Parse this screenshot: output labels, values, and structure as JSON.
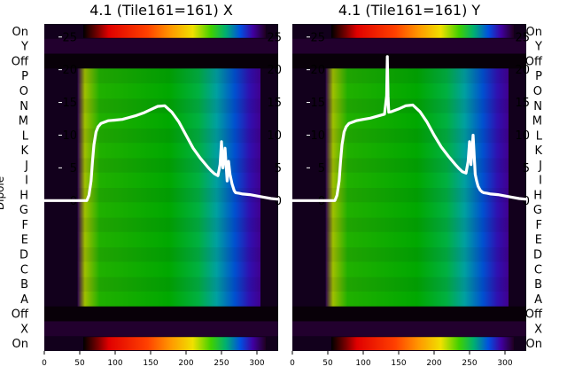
{
  "chart_data": [
    {
      "type": "heatmap",
      "title": "4.1 (Tile161=161) X",
      "ylabel": "Dipole",
      "row_labels_top_to_bottom": [
        "On",
        "Y",
        "Off",
        "P",
        "O",
        "N",
        "M",
        "L",
        "K",
        "J",
        "I",
        "H",
        "G",
        "F",
        "E",
        "D",
        "C",
        "B",
        "A",
        "Off",
        "X",
        "On"
      ],
      "x_ticks": [
        0,
        50,
        100,
        150,
        200,
        250,
        300
      ],
      "xlim": [
        0,
        330
      ],
      "overlay_y_ticks": [
        0,
        5,
        10,
        15,
        20,
        25
      ],
      "overlay_ylim": [
        -23,
        27
      ],
      "heatmap_span_x": [
        62,
        270
      ],
      "series": [
        {
          "name": "",
          "x": [
            0,
            40,
            60,
            63,
            66,
            68,
            70,
            73,
            76,
            80,
            85,
            90,
            100,
            110,
            120,
            130,
            140,
            150,
            160,
            170,
            180,
            190,
            200,
            210,
            220,
            230,
            235,
            240,
            245,
            248,
            250,
            252,
            255,
            258,
            260,
            262,
            265,
            268,
            270,
            275,
            280,
            290,
            300,
            310,
            320,
            330
          ],
          "y": [
            0,
            0,
            0,
            0.8,
            3,
            6,
            8.5,
            10.5,
            11.3,
            11.8,
            12,
            12.2,
            12.3,
            12.4,
            12.7,
            13,
            13.4,
            13.9,
            14.4,
            14.5,
            13.5,
            12,
            10,
            8,
            6.5,
            5.2,
            4.6,
            4.1,
            3.8,
            5.5,
            9,
            5,
            8,
            3,
            6,
            4,
            2.5,
            1.5,
            1.2,
            1.1,
            1.0,
            0.9,
            0.7,
            0.5,
            0.3,
            0.2
          ]
        }
      ]
    },
    {
      "type": "heatmap",
      "title": "4.1 (Tile161=161) Y",
      "ylabel": "",
      "row_labels_top_to_bottom": [
        "On",
        "Y",
        "Off",
        "P",
        "O",
        "N",
        "M",
        "L",
        "K",
        "J",
        "I",
        "H",
        "G",
        "F",
        "E",
        "D",
        "C",
        "B",
        "A",
        "Off",
        "X",
        "On"
      ],
      "x_ticks": [
        0,
        50,
        100,
        150,
        200,
        250,
        300
      ],
      "xlim": [
        0,
        330
      ],
      "overlay_y_ticks": [
        0,
        5,
        10,
        15,
        20,
        25
      ],
      "overlay_ylim": [
        -23,
        27
      ],
      "heatmap_span_x": [
        62,
        270
      ],
      "series": [
        {
          "name": "",
          "x": [
            0,
            40,
            60,
            63,
            66,
            68,
            70,
            73,
            76,
            80,
            85,
            90,
            100,
            110,
            120,
            130,
            133,
            134,
            135,
            136,
            140,
            150,
            160,
            170,
            180,
            190,
            200,
            210,
            220,
            230,
            235,
            240,
            245,
            248,
            250,
            252,
            255,
            258,
            260,
            262,
            265,
            268,
            270,
            275,
            280,
            290,
            300,
            310,
            320,
            330
          ],
          "y": [
            0,
            0,
            0,
            0.8,
            3,
            6,
            8.5,
            10.5,
            11.3,
            11.8,
            12,
            12.2,
            12.4,
            12.6,
            12.9,
            13.2,
            16,
            22,
            16,
            13.5,
            13.6,
            14,
            14.5,
            14.6,
            13.6,
            12,
            10,
            8.2,
            6.8,
            5.5,
            4.9,
            4.4,
            4.2,
            6,
            9,
            5.5,
            10,
            4,
            3,
            2.2,
            1.6,
            1.3,
            1.2,
            1.1,
            1.0,
            0.9,
            0.7,
            0.5,
            0.3,
            0.2
          ]
        }
      ]
    }
  ]
}
